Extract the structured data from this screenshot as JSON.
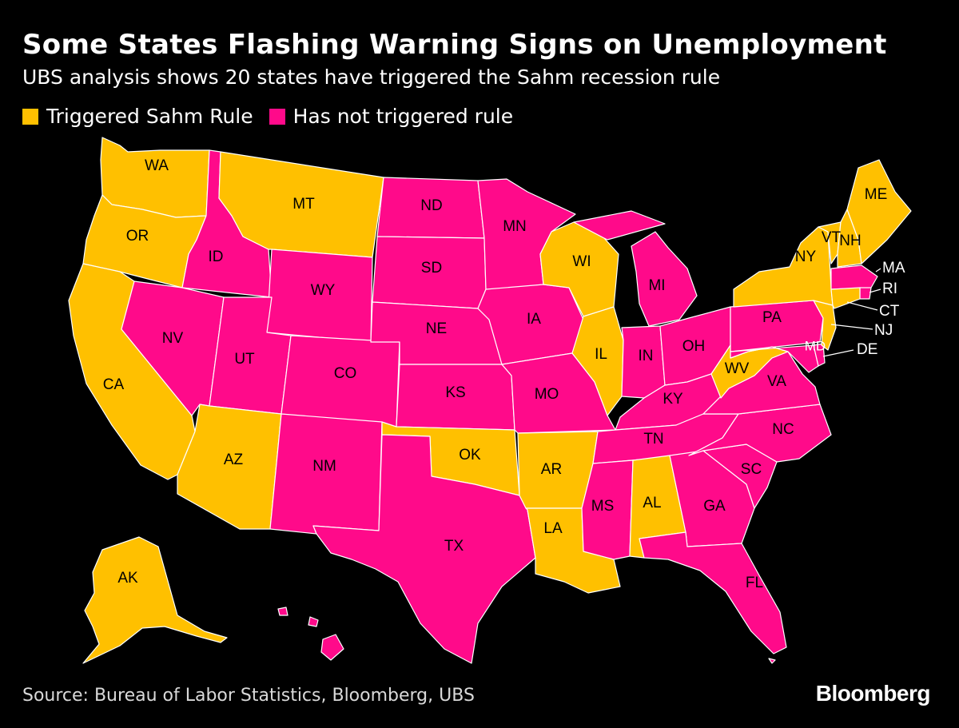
{
  "title": "Some States Flashing Warning Signs on Unemployment",
  "subtitle": "UBS analysis shows 20 states have triggered the Sahm recession rule",
  "legend": [
    {
      "label": "Triggered Sahm Rule",
      "color": "#ffc000"
    },
    {
      "label": "Has not triggered rule",
      "color": "#ff0a8a"
    }
  ],
  "source": "Source: Bureau of Labor Statistics, Bloomberg, UBS",
  "brand": "Bloomberg",
  "colors": {
    "triggered": "#ffc000",
    "not_triggered": "#ff0a8a",
    "background": "#000000"
  },
  "states": [
    {
      "code": "WA",
      "triggered": true
    },
    {
      "code": "OR",
      "triggered": true
    },
    {
      "code": "CA",
      "triggered": true
    },
    {
      "code": "ID",
      "triggered": false
    },
    {
      "code": "NV",
      "triggered": false
    },
    {
      "code": "MT",
      "triggered": true
    },
    {
      "code": "WY",
      "triggered": false
    },
    {
      "code": "UT",
      "triggered": false
    },
    {
      "code": "AZ",
      "triggered": true
    },
    {
      "code": "CO",
      "triggered": false
    },
    {
      "code": "NM",
      "triggered": false
    },
    {
      "code": "ND",
      "triggered": false
    },
    {
      "code": "SD",
      "triggered": false
    },
    {
      "code": "NE",
      "triggered": false
    },
    {
      "code": "KS",
      "triggered": false
    },
    {
      "code": "OK",
      "triggered": true
    },
    {
      "code": "TX",
      "triggered": false
    },
    {
      "code": "MN",
      "triggered": false
    },
    {
      "code": "IA",
      "triggered": false
    },
    {
      "code": "MO",
      "triggered": false
    },
    {
      "code": "AR",
      "triggered": true
    },
    {
      "code": "LA",
      "triggered": true
    },
    {
      "code": "WI",
      "triggered": true
    },
    {
      "code": "IL",
      "triggered": true
    },
    {
      "code": "MI",
      "triggered": false
    },
    {
      "code": "IN",
      "triggered": false
    },
    {
      "code": "OH",
      "triggered": false
    },
    {
      "code": "KY",
      "triggered": false
    },
    {
      "code": "TN",
      "triggered": false
    },
    {
      "code": "MS",
      "triggered": false
    },
    {
      "code": "AL",
      "triggered": true
    },
    {
      "code": "GA",
      "triggered": false
    },
    {
      "code": "FL",
      "triggered": false
    },
    {
      "code": "SC",
      "triggered": false
    },
    {
      "code": "NC",
      "triggered": false
    },
    {
      "code": "VA",
      "triggered": false
    },
    {
      "code": "WV",
      "triggered": true
    },
    {
      "code": "PA",
      "triggered": false
    },
    {
      "code": "NY",
      "triggered": true
    },
    {
      "code": "VT",
      "triggered": true
    },
    {
      "code": "NH",
      "triggered": true
    },
    {
      "code": "ME",
      "triggered": true
    },
    {
      "code": "MA",
      "triggered": false
    },
    {
      "code": "RI",
      "triggered": false
    },
    {
      "code": "CT",
      "triggered": true
    },
    {
      "code": "NJ",
      "triggered": true
    },
    {
      "code": "DE",
      "triggered": false
    },
    {
      "code": "MD",
      "triggered": false
    },
    {
      "code": "AK",
      "triggered": true
    },
    {
      "code": "HI",
      "triggered": false
    }
  ]
}
